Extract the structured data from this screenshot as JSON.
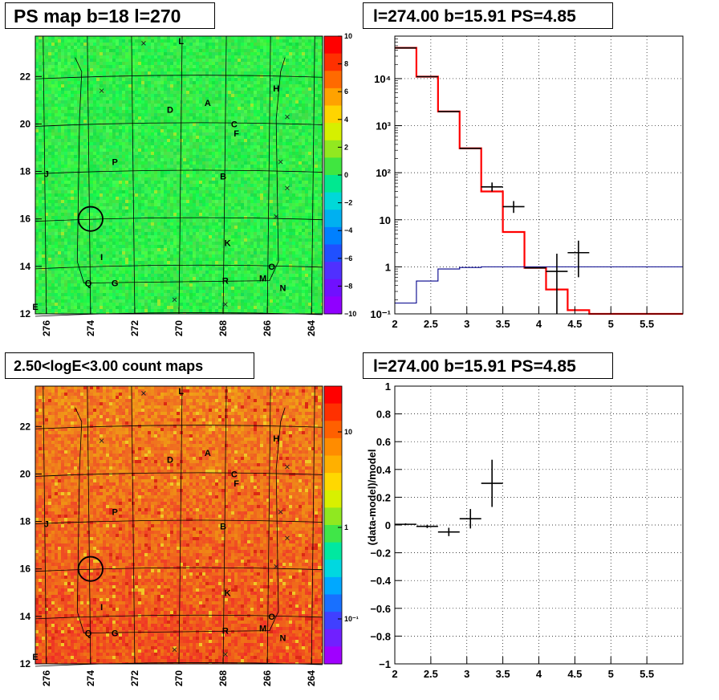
{
  "panels": {
    "ps_map": {
      "title": "PS map b=18 l=270",
      "colorbar_labels": [
        "10",
        "8",
        "6",
        "4",
        "2",
        "0",
        "−2",
        "−4",
        "−6",
        "−8",
        "−10"
      ]
    },
    "spectrum": {
      "title": "l=274.00 b=15.91 PS=4.85"
    },
    "count_map": {
      "title": "2.50<logE<3.00 count maps",
      "colorbar_labels": [
        "10",
        "1",
        "10⁻¹"
      ]
    },
    "residual": {
      "title": "l=274.00 b=15.91 PS=4.85"
    }
  },
  "map_axes": {
    "x_ticks": [
      "276",
      "274",
      "272",
      "270",
      "268",
      "266",
      "264"
    ],
    "y_ticks": [
      "12",
      "14",
      "16",
      "18",
      "20",
      "22"
    ]
  },
  "source_labels": [
    "L",
    "H",
    "A",
    "D",
    "C",
    "F",
    "J",
    "P",
    "B",
    "K",
    "I",
    "O",
    "Q",
    "G",
    "R",
    "M",
    "N",
    "E"
  ],
  "colors": {
    "model": "#ff0000",
    "background": "#00008b",
    "data": "#000000",
    "ps_map_base": "#22ee44",
    "count_map_base": "#ee6010"
  },
  "chart_data": [
    {
      "type": "heatmap",
      "title": "PS map b=18 l=270",
      "xlabel": "",
      "ylabel": "",
      "xlim": [
        276.5,
        263.5
      ],
      "ylim": [
        12,
        23.7
      ],
      "zlim": [
        -10,
        10
      ],
      "circle": {
        "l": 274,
        "b": 16,
        "r": 0.55
      },
      "sources": [
        {
          "name": "L",
          "l": 269.9,
          "b": 23.5
        },
        {
          "name": "H",
          "l": 265.6,
          "b": 21.5
        },
        {
          "name": "A",
          "l": 268.7,
          "b": 20.9
        },
        {
          "name": "D",
          "l": 270.4,
          "b": 20.6
        },
        {
          "name": "C",
          "l": 267.5,
          "b": 20.0
        },
        {
          "name": "F",
          "l": 267.4,
          "b": 19.6
        },
        {
          "name": "J",
          "l": 276.0,
          "b": 17.9
        },
        {
          "name": "P",
          "l": 272.9,
          "b": 18.4
        },
        {
          "name": "B",
          "l": 268.0,
          "b": 17.8
        },
        {
          "name": "K",
          "l": 267.8,
          "b": 15.0
        },
        {
          "name": "I",
          "l": 273.5,
          "b": 14.4
        },
        {
          "name": "O",
          "l": 265.8,
          "b": 14.0
        },
        {
          "name": "Q",
          "l": 274.1,
          "b": 13.3
        },
        {
          "name": "G",
          "l": 272.9,
          "b": 13.3
        },
        {
          "name": "R",
          "l": 267.9,
          "b": 13.4
        },
        {
          "name": "M",
          "l": 266.2,
          "b": 13.5
        },
        {
          "name": "N",
          "l": 265.3,
          "b": 13.1
        },
        {
          "name": "E",
          "l": 276.5,
          "b": 12.3
        }
      ]
    },
    {
      "type": "line",
      "title": "l=274.00 b=15.91 PS=4.85",
      "xlabel": "",
      "ylabel": "",
      "xlim": [
        2,
        6
      ],
      "ylim": [
        0.1,
        80000
      ],
      "yscale": "log",
      "x_ticks": [
        "2",
        "2.5",
        "3",
        "3.5",
        "4",
        "4.5",
        "5",
        "5.5"
      ],
      "y_ticks": [
        "10⁻¹",
        "1",
        "10",
        "10²",
        "10³",
        "10⁴"
      ],
      "bin_edges": [
        2.0,
        2.3,
        2.6,
        2.9,
        3.2,
        3.5,
        3.8,
        4.1,
        4.4,
        4.7,
        5.0,
        5.3,
        5.6,
        6.0
      ],
      "series": [
        {
          "name": "",
          "color": "#ff0000",
          "values": [
            45000,
            11000,
            2000,
            330,
            40,
            5.5,
            0.95,
            0.33,
            0.12,
            0.1,
            0.1,
            0.1,
            0.1
          ]
        },
        {
          "name": "",
          "color": "#00008b",
          "values": [
            0.17,
            0.5,
            0.9,
            0.97,
            1.0,
            1.0,
            1.0,
            1.0,
            1.0,
            1.0,
            1.0,
            1.0,
            1.0
          ]
        }
      ],
      "points": [
        {
          "x": 2.15,
          "y": 45000
        },
        {
          "x": 2.45,
          "y": 11000
        },
        {
          "x": 2.75,
          "y": 2000
        },
        {
          "x": 3.05,
          "y": 330
        },
        {
          "x": 3.35,
          "y": 50,
          "ylo": 40,
          "yhi": 62
        },
        {
          "x": 3.65,
          "y": 19,
          "ylo": 14,
          "yhi": 25
        },
        {
          "x": 3.95,
          "y": 0.95
        },
        {
          "x": 4.25,
          "y": 0.8,
          "ylo": 0.1,
          "yhi": 1.9
        },
        {
          "x": 4.55,
          "y": 2,
          "ylo": 0.6,
          "yhi": 3.6
        }
      ]
    },
    {
      "type": "heatmap",
      "title": "2.50<logE<3.00 count maps",
      "xlabel": "",
      "ylabel": "",
      "xlim": [
        276.5,
        263.5
      ],
      "ylim": [
        12,
        23.7
      ],
      "zscale": "log",
      "circle": {
        "l": 274,
        "b": 16,
        "r": 0.55
      },
      "same_sources_as_ps_map": true
    },
    {
      "type": "scatter",
      "title": "l=274.00 b=15.91 PS=4.85",
      "xlabel": "",
      "ylabel": "(data-model)/model",
      "xlim": [
        2,
        6
      ],
      "ylim": [
        -1,
        1
      ],
      "x_ticks": [
        "2",
        "2.5",
        "3",
        "3.5",
        "4",
        "4.5",
        "5",
        "5.5"
      ],
      "y_ticks": [
        "−1",
        "−0.8",
        "−0.6",
        "−0.4",
        "−0.2",
        "0",
        "0.2",
        "0.4",
        "0.6",
        "0.8",
        "1"
      ],
      "points": [
        {
          "x": 2.15,
          "y": 0.005,
          "dy": 0.007,
          "dx": 0.15
        },
        {
          "x": 2.45,
          "y": -0.01,
          "dy": 0.012,
          "dx": 0.15
        },
        {
          "x": 2.75,
          "y": -0.05,
          "dy": 0.03,
          "dx": 0.15
        },
        {
          "x": 3.05,
          "y": 0.045,
          "dy": 0.07,
          "dx": 0.15
        },
        {
          "x": 3.35,
          "y": 0.3,
          "dy": 0.17,
          "dx": 0.15
        }
      ]
    }
  ]
}
